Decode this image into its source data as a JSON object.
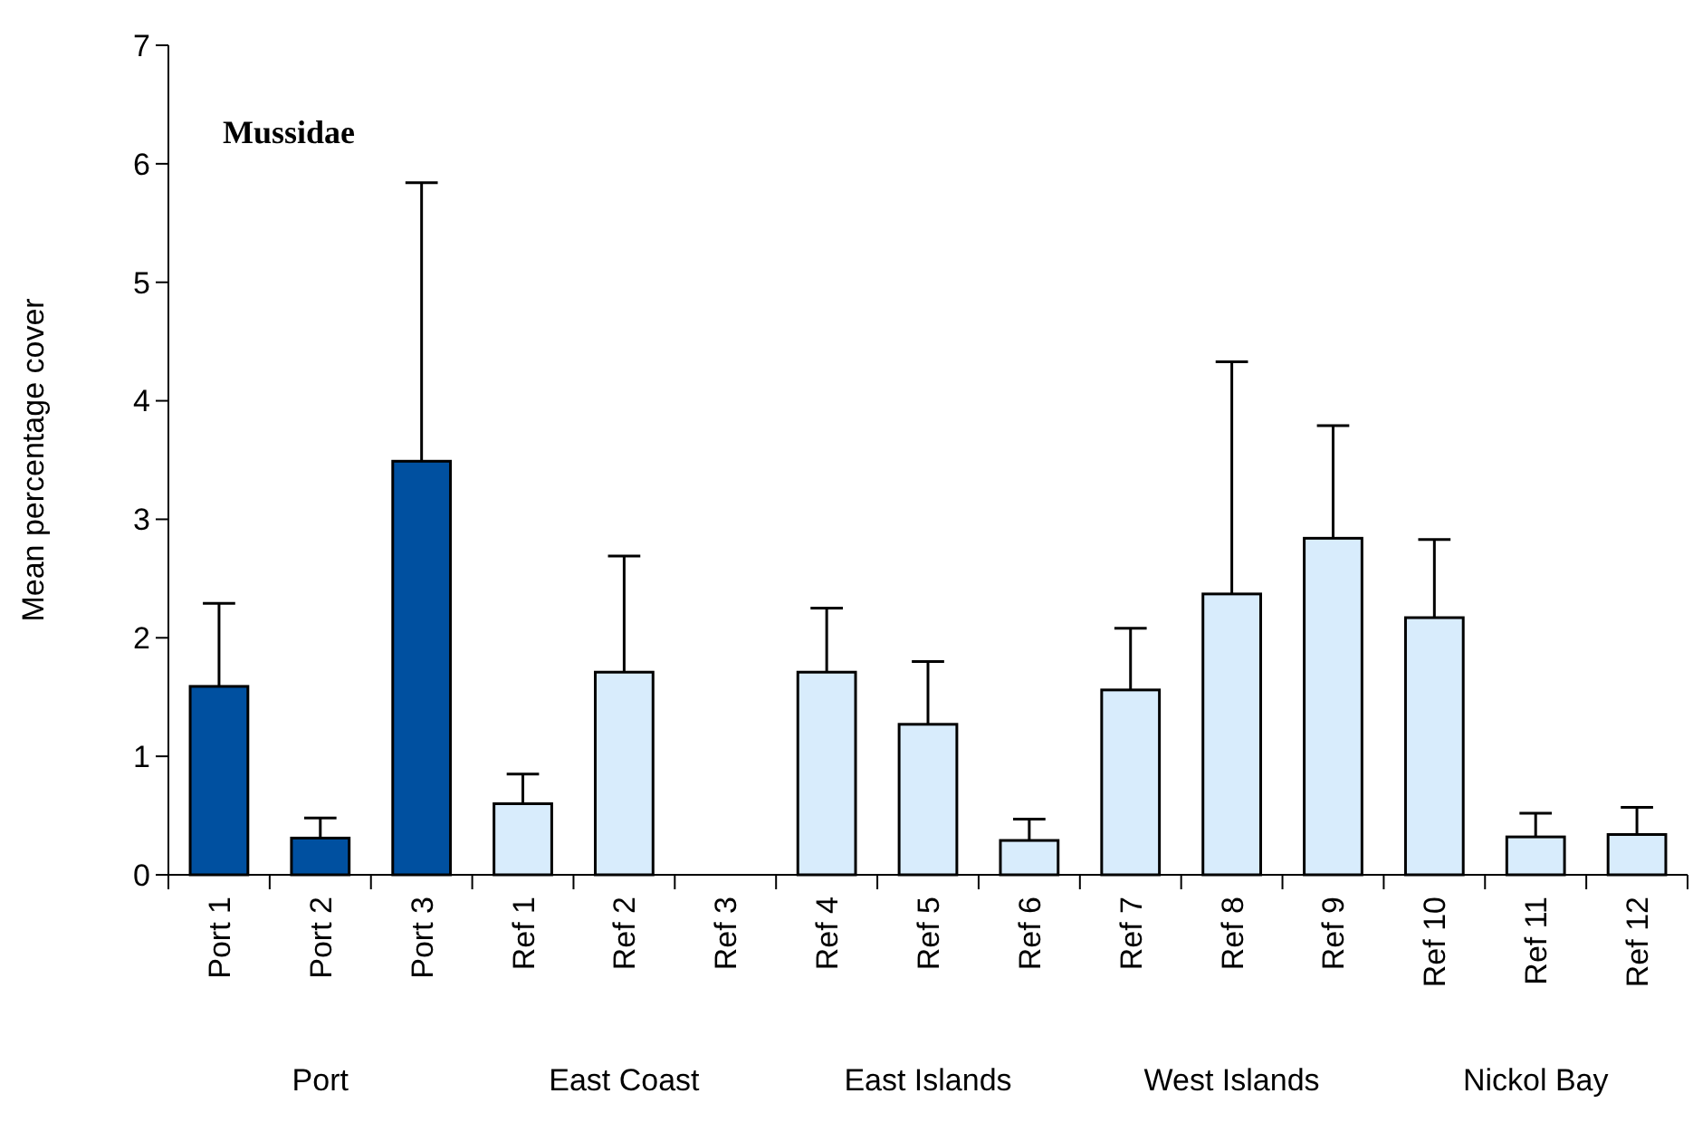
{
  "chart_data": {
    "type": "bar",
    "title": "Mussidae",
    "ylabel": "Mean percentage cover",
    "categories": [
      "Port 1",
      "Port 2",
      "Port 3",
      "Ref 1",
      "Ref 2",
      "Ref 3",
      "Ref 4",
      "Ref 5",
      "Ref 6",
      "Ref 7",
      "Ref 8",
      "Ref 9",
      "Ref 10",
      "Ref 11",
      "Ref 12"
    ],
    "values": [
      1.59,
      0.31,
      3.49,
      0.6,
      1.71,
      0,
      1.71,
      1.27,
      0.29,
      1.56,
      2.37,
      2.84,
      2.17,
      0.32,
      0.34
    ],
    "errors": [
      0.7,
      0.17,
      2.35,
      0.25,
      0.98,
      null,
      0.54,
      0.53,
      0.18,
      0.52,
      1.96,
      0.95,
      0.66,
      0.2,
      0.23
    ],
    "colors": [
      "#0050a0",
      "#0050a0",
      "#0050a0",
      "#d8ecfc",
      "#d8ecfc",
      "#d8ecfc",
      "#d8ecfc",
      "#d8ecfc",
      "#d8ecfc",
      "#d8ecfc",
      "#d8ecfc",
      "#d8ecfc",
      "#d8ecfc",
      "#d8ecfc",
      "#d8ecfc"
    ],
    "ylim": [
      0,
      7
    ],
    "yticks": [
      0,
      1,
      2,
      3,
      4,
      5,
      6,
      7
    ],
    "grid": false,
    "annotations": [
      "Port",
      "East Coast",
      "East Islands",
      "West Islands",
      "Nickol Bay"
    ]
  }
}
